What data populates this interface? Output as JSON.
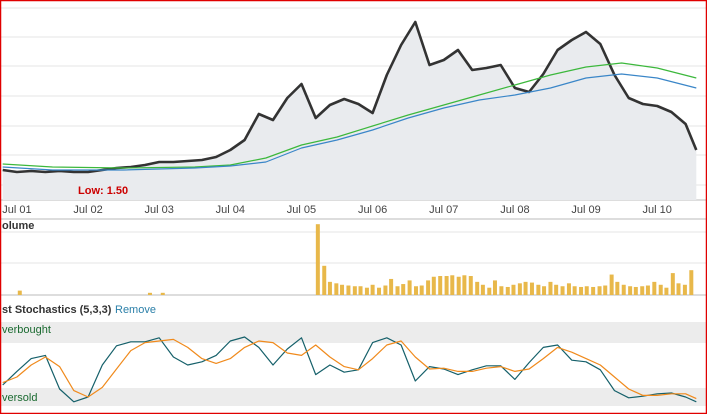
{
  "chart_data": [
    {
      "type": "line",
      "x": [
        2001.3,
        2001.5,
        2001.7,
        2001.9,
        2002.1,
        2002.3,
        2002.5,
        2002.7,
        2002.9,
        2003.1,
        2003.3,
        2003.5,
        2003.7,
        2003.9,
        2004.1,
        2004.3,
        2004.5,
        2004.7,
        2004.9,
        2005.1,
        2005.3,
        2005.5,
        2005.7,
        2005.9,
        2006.1,
        2006.3,
        2006.5,
        2006.7,
        2006.9,
        2007.1,
        2007.3,
        2007.5,
        2007.7,
        2007.9,
        2008.1,
        2008.3,
        2008.5,
        2008.7,
        2008.9,
        2009.1,
        2009.3,
        2009.5,
        2009.7,
        2009.9,
        2010.1,
        2010.3,
        2010.5,
        2010.7,
        2010.9,
        2011.05
      ],
      "series": [
        {
          "color": "#333333",
          "area": true,
          "values": [
            1.6,
            1.5,
            1.55,
            1.5,
            1.55,
            1.5,
            1.5,
            1.6,
            1.7,
            1.75,
            1.85,
            2.0,
            2.0,
            2.05,
            2.1,
            2.25,
            2.6,
            3.1,
            4.4,
            4.1,
            5.2,
            5.9,
            4.2,
            4.85,
            5.15,
            4.9,
            4.45,
            6.35,
            7.85,
            9.0,
            6.85,
            7.1,
            7.6,
            6.6,
            6.7,
            6.85,
            5.7,
            5.5,
            6.4,
            7.6,
            8.1,
            8.5,
            7.9,
            6.35,
            5.2,
            4.9,
            4.8,
            4.5,
            3.9,
            2.6
          ]
        },
        {
          "color": "#3cb83c",
          "x": [
            2001.3,
            2002.0,
            2003.0,
            2004.0,
            2004.5,
            2005.0,
            2005.5,
            2006.0,
            2006.5,
            2007.0,
            2007.5,
            2008.0,
            2008.5,
            2009.0,
            2009.5,
            2010.0,
            2010.5,
            2011.05
          ],
          "values": [
            1.9,
            1.75,
            1.7,
            1.75,
            1.85,
            2.2,
            2.85,
            3.25,
            3.8,
            4.35,
            4.85,
            5.35,
            5.85,
            6.35,
            6.75,
            6.95,
            6.7,
            6.2
          ]
        },
        {
          "color": "#3a86c8",
          "x": [
            2001.3,
            2002.0,
            2003.0,
            2004.0,
            2004.5,
            2005.0,
            2005.5,
            2006.0,
            2006.5,
            2007.0,
            2007.5,
            2008.0,
            2008.5,
            2009.0,
            2009.5,
            2010.0,
            2010.5,
            2011.05
          ],
          "values": [
            1.75,
            1.6,
            1.6,
            1.7,
            1.8,
            2.0,
            2.7,
            3.1,
            3.6,
            4.2,
            4.7,
            5.1,
            5.35,
            5.7,
            6.2,
            6.4,
            6.2,
            5.7
          ]
        }
      ],
      "xlim": [
        2001.29,
        2011.06
      ],
      "ylim": [
        0.1,
        10.1
      ],
      "xticks": [
        {
          "value": 2001.5,
          "label": "Jul 01"
        },
        {
          "value": 2002.5,
          "label": "Jul 02"
        },
        {
          "value": 2003.5,
          "label": "Jul 03"
        },
        {
          "value": 2004.5,
          "label": "Jul 04"
        },
        {
          "value": 2005.5,
          "label": "Jul 05"
        },
        {
          "value": 2006.5,
          "label": "Jul 06"
        },
        {
          "value": 2007.5,
          "label": "Jul 07"
        },
        {
          "value": 2008.5,
          "label": "Jul 08"
        },
        {
          "value": 2009.5,
          "label": "Jul 09"
        },
        {
          "value": 2010.5,
          "label": "Jul 10"
        }
      ],
      "annotations": [
        "Low: 1.50"
      ]
    },
    {
      "type": "bar",
      "title": "olume",
      "color": "#e8b84a",
      "x": [
        2001.54,
        2003.37,
        2003.55,
        2005.73,
        2005.82,
        2005.9,
        2005.99,
        2006.07,
        2006.16,
        2006.25,
        2006.33,
        2006.42,
        2006.5,
        2006.59,
        2006.68,
        2006.76,
        2006.85,
        2006.93,
        2007.02,
        2007.11,
        2007.19,
        2007.28,
        2007.36,
        2007.45,
        2007.54,
        2007.62,
        2007.71,
        2007.79,
        2007.88,
        2007.97,
        2008.05,
        2008.14,
        2008.22,
        2008.31,
        2008.4,
        2008.48,
        2008.57,
        2008.65,
        2008.74,
        2008.83,
        2008.91,
        2009.0,
        2009.08,
        2009.17,
        2009.26,
        2009.34,
        2009.43,
        2009.51,
        2009.6,
        2009.69,
        2009.77,
        2009.86,
        2009.94,
        2010.03,
        2010.12,
        2010.2,
        2010.29,
        2010.37,
        2010.46,
        2010.55,
        2010.63,
        2010.72,
        2010.8,
        2010.89,
        2010.98
      ],
      "values": [
        6,
        3,
        3,
        97,
        40,
        18,
        16,
        14,
        13,
        12,
        12,
        10,
        14,
        10,
        13,
        22,
        12,
        15,
        20,
        12,
        13,
        20,
        25,
        26,
        26,
        27,
        25,
        27,
        26,
        18,
        14,
        10,
        20,
        12,
        11,
        14,
        16,
        18,
        17,
        14,
        12,
        18,
        14,
        12,
        16,
        12,
        11,
        12,
        11,
        12,
        13,
        28,
        18,
        14,
        12,
        11,
        12,
        13,
        18,
        14,
        10,
        30,
        16,
        14,
        34
      ],
      "xlim": [
        2001.29,
        2011.06
      ],
      "ylim": [
        0,
        100
      ]
    },
    {
      "type": "line",
      "title": "st Stochastics (5,3,3)",
      "link": "Remove",
      "x": [
        2001.3,
        2001.5,
        2001.7,
        2001.9,
        2002.1,
        2002.3,
        2002.5,
        2002.7,
        2002.9,
        2003.1,
        2003.3,
        2003.5,
        2003.7,
        2003.9,
        2004.1,
        2004.3,
        2004.5,
        2004.7,
        2004.9,
        2005.1,
        2005.3,
        2005.5,
        2005.7,
        2005.9,
        2006.1,
        2006.3,
        2006.5,
        2006.7,
        2006.9,
        2007.1,
        2007.3,
        2007.5,
        2007.7,
        2007.9,
        2008.1,
        2008.3,
        2008.5,
        2008.7,
        2008.9,
        2009.1,
        2009.3,
        2009.5,
        2009.7,
        2009.9,
        2010.1,
        2010.3,
        2010.5,
        2010.7,
        2010.9,
        2011.05
      ],
      "series": [
        {
          "color": "#15606a",
          "values": [
            25,
            42,
            58,
            62,
            20,
            4,
            10,
            50,
            74,
            79,
            79,
            84,
            60,
            50,
            54,
            62,
            80,
            85,
            72,
            50,
            70,
            84,
            38,
            50,
            41,
            44,
            78,
            84,
            75,
            30,
            48,
            45,
            38,
            44,
            49,
            49,
            32,
            53,
            72,
            75,
            56,
            54,
            44,
            18,
            9,
            11,
            14,
            15,
            10,
            4
          ]
        },
        {
          "color": "#f08a1c",
          "values": [
            28,
            35,
            50,
            60,
            48,
            18,
            10,
            22,
            45,
            68,
            78,
            80,
            82,
            72,
            58,
            52,
            58,
            72,
            80,
            78,
            65,
            62,
            75,
            60,
            48,
            44,
            58,
            75,
            80,
            60,
            45,
            46,
            42,
            42,
            46,
            48,
            42,
            45,
            58,
            72,
            66,
            58,
            50,
            35,
            20,
            12,
            12,
            14,
            14,
            8
          ]
        }
      ],
      "xlim": [
        2001.29,
        2011.06
      ],
      "ylim": [
        0,
        100
      ],
      "annotations": [
        "verbought",
        "versold"
      ]
    }
  ]
}
